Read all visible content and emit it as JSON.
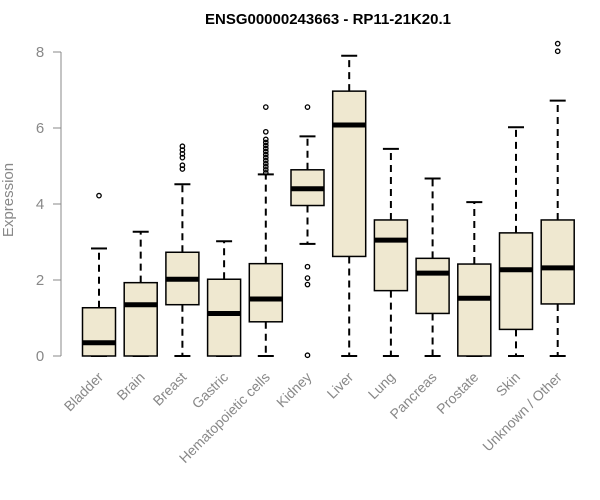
{
  "chart_data": {
    "type": "box",
    "title": "ENSG00000243663 - RP11-21K20.1",
    "xlabel": "",
    "ylabel": "Expression",
    "ylim": [
      0,
      8.2
    ],
    "yticks": [
      0,
      2,
      4,
      6,
      8
    ],
    "box_fill": "#efe8d0",
    "categories": [
      "Bladder",
      "Brain",
      "Breast",
      "Gastric",
      "Hematopoietic cells",
      "Kidney",
      "Liver",
      "Lung",
      "Pancreas",
      "Prostate",
      "Skin",
      "Unknown / Other"
    ],
    "boxes": [
      {
        "category": "Bladder",
        "min": 0,
        "q1": 0,
        "median": 0.35,
        "q3": 1.27,
        "max": 2.83,
        "outliers": [
          4.22
        ]
      },
      {
        "category": "Brain",
        "min": 0,
        "q1": 0,
        "median": 1.35,
        "q3": 1.93,
        "max": 3.27,
        "outliers": []
      },
      {
        "category": "Breast",
        "min": 0,
        "q1": 1.35,
        "median": 2.02,
        "q3": 2.73,
        "max": 4.52,
        "outliers": [
          4.92,
          5.02,
          5.22,
          5.32,
          5.42,
          5.52
        ]
      },
      {
        "category": "Gastric",
        "min": 0,
        "q1": 0,
        "median": 1.12,
        "q3": 2.02,
        "max": 3.02,
        "outliers": []
      },
      {
        "category": "Hematopoietic cells",
        "min": 0,
        "q1": 0.9,
        "median": 1.5,
        "q3": 2.43,
        "max": 4.78,
        "outliers": [
          4.82,
          4.9,
          4.98,
          5.06,
          5.14,
          5.22,
          5.3,
          5.38,
          5.46,
          5.54,
          5.62,
          5.7,
          5.9,
          6.55
        ]
      },
      {
        "category": "Kidney",
        "min": 2.95,
        "q1": 3.96,
        "median": 4.4,
        "q3": 4.9,
        "max": 5.78,
        "outliers": [
          6.55,
          2.35,
          2.05,
          1.88,
          0.02
        ]
      },
      {
        "category": "Liver",
        "min": 0,
        "q1": 2.62,
        "median": 6.08,
        "q3": 6.97,
        "max": 7.9,
        "outliers": []
      },
      {
        "category": "Lung",
        "min": 0,
        "q1": 1.72,
        "median": 3.05,
        "q3": 3.58,
        "max": 5.45,
        "outliers": []
      },
      {
        "category": "Pancreas",
        "min": 0,
        "q1": 1.12,
        "median": 2.18,
        "q3": 2.57,
        "max": 4.67,
        "outliers": []
      },
      {
        "category": "Prostate",
        "min": 0,
        "q1": 0,
        "median": 1.52,
        "q3": 2.42,
        "max": 4.05,
        "outliers": []
      },
      {
        "category": "Skin",
        "min": 0,
        "q1": 0.7,
        "median": 2.27,
        "q3": 3.24,
        "max": 6.02,
        "outliers": []
      },
      {
        "category": "Unknown / Other",
        "min": 0,
        "q1": 1.37,
        "median": 2.32,
        "q3": 3.58,
        "max": 6.72,
        "outliers": [
          8.02,
          8.22
        ]
      }
    ]
  }
}
